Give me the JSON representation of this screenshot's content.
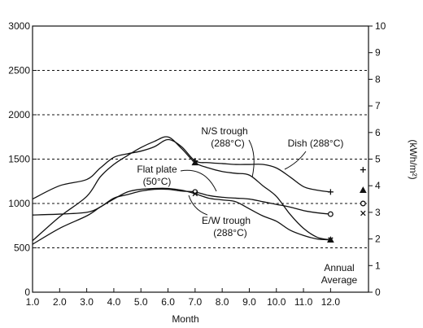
{
  "chart_data": {
    "type": "line",
    "title": "",
    "xlabel": "Month",
    "ylabel_left": "",
    "ylabel_right": "(kWh/m²)",
    "xlim": [
      1.0,
      13.4
    ],
    "ylim": [
      0,
      3000
    ],
    "ylim_right": [
      0,
      10
    ],
    "x_ticks": [
      1.0,
      2.0,
      3.0,
      4.0,
      5.0,
      6.0,
      7.0,
      8.0,
      9.0,
      10.0,
      11.0,
      12.0
    ],
    "x_tick_labels": [
      "1.0",
      "2.0",
      "3.0",
      "4.0",
      "5.0",
      "6.0",
      "7.0",
      "8.0",
      "9.0",
      "10.0",
      "11.0",
      "12.0"
    ],
    "y_ticks": [
      0,
      500,
      1000,
      1500,
      2000,
      2500,
      3000
    ],
    "y_tick_labels": [
      "0",
      "500",
      "1000",
      "1500",
      "2000",
      "2500",
      "3000"
    ],
    "y_right_ticks": [
      0,
      1,
      2,
      3,
      4,
      5,
      6,
      7,
      8,
      9,
      10
    ],
    "y_right_tick_labels": [
      "0",
      "1",
      "2",
      "3",
      "4",
      "5",
      "6",
      "7",
      "8",
      "9",
      "10"
    ],
    "grid": "horizontal dashed at 500, 1000, 1500, 2000, 2500",
    "series": [
      {
        "name": "Dish (288°C)",
        "marker": "plus",
        "x": [
          1.0,
          2.0,
          3.0,
          3.5,
          4.0,
          4.5,
          5.0,
          5.5,
          6.0,
          6.5,
          7.0,
          7.5,
          8.0,
          8.5,
          9.0,
          9.5,
          10.0,
          10.5,
          11.0,
          11.5,
          12.0
        ],
        "y": [
          1050,
          1200,
          1270,
          1400,
          1520,
          1560,
          1590,
          1640,
          1720,
          1640,
          1480,
          1460,
          1450,
          1440,
          1440,
          1440,
          1400,
          1300,
          1190,
          1150,
          1130
        ]
      },
      {
        "name": "N/S trough (288°C)",
        "marker": "triangle",
        "x": [
          1.0,
          2.0,
          3.0,
          3.5,
          4.0,
          4.5,
          5.0,
          5.5,
          6.0,
          6.5,
          7.0,
          7.5,
          8.0,
          8.5,
          9.0,
          9.5,
          10.0,
          10.5,
          11.0,
          11.5,
          12.0
        ],
        "y": [
          580,
          850,
          1080,
          1300,
          1440,
          1540,
          1630,
          1700,
          1750,
          1620,
          1460,
          1400,
          1360,
          1340,
          1320,
          1200,
          1080,
          880,
          720,
          620,
          590
        ]
      },
      {
        "name": "Flat plate (50°C)",
        "marker": "circle",
        "x": [
          1.0,
          2.0,
          3.0,
          3.5,
          4.0,
          4.5,
          5.0,
          5.5,
          6.0,
          6.5,
          7.0,
          7.5,
          8.0,
          8.5,
          9.0,
          9.5,
          10.0,
          10.5,
          11.0,
          11.5,
          12.0
        ],
        "y": [
          870,
          880,
          900,
          960,
          1060,
          1100,
          1140,
          1160,
          1160,
          1140,
          1130,
          1090,
          1070,
          1060,
          1050,
          1020,
          990,
          960,
          920,
          895,
          880
        ]
      },
      {
        "name": "E/W trough (288°C)",
        "marker": "x",
        "x": [
          1.0,
          2.0,
          3.0,
          3.5,
          4.0,
          4.5,
          5.0,
          5.5,
          6.0,
          6.5,
          7.0,
          7.5,
          8.0,
          8.5,
          9.0,
          9.5,
          10.0,
          10.5,
          11.0,
          11.5,
          12.0
        ],
        "y": [
          540,
          720,
          860,
          960,
          1050,
          1130,
          1160,
          1170,
          1170,
          1150,
          1110,
          1060,
          1040,
          1020,
          940,
          860,
          800,
          700,
          640,
          600,
          590
        ]
      }
    ],
    "annual_average": {
      "label": "Annual Average",
      "x": 13.2,
      "values": [
        {
          "marker": "plus",
          "value": 1380
        },
        {
          "marker": "triangle",
          "value": 1150
        },
        {
          "marker": "circle",
          "value": 1000
        },
        {
          "marker": "x",
          "value": 890
        }
      ]
    },
    "annotations": [
      {
        "text": "N/S trough",
        "text2": "(288°C)"
      },
      {
        "text": "Dish (288°C)"
      },
      {
        "text": "Flat plate",
        "text2": "(50°C)"
      },
      {
        "text": "E/W trough",
        "text2": "(288°C)"
      },
      {
        "text": "Annual",
        "text2": "Average"
      }
    ]
  }
}
